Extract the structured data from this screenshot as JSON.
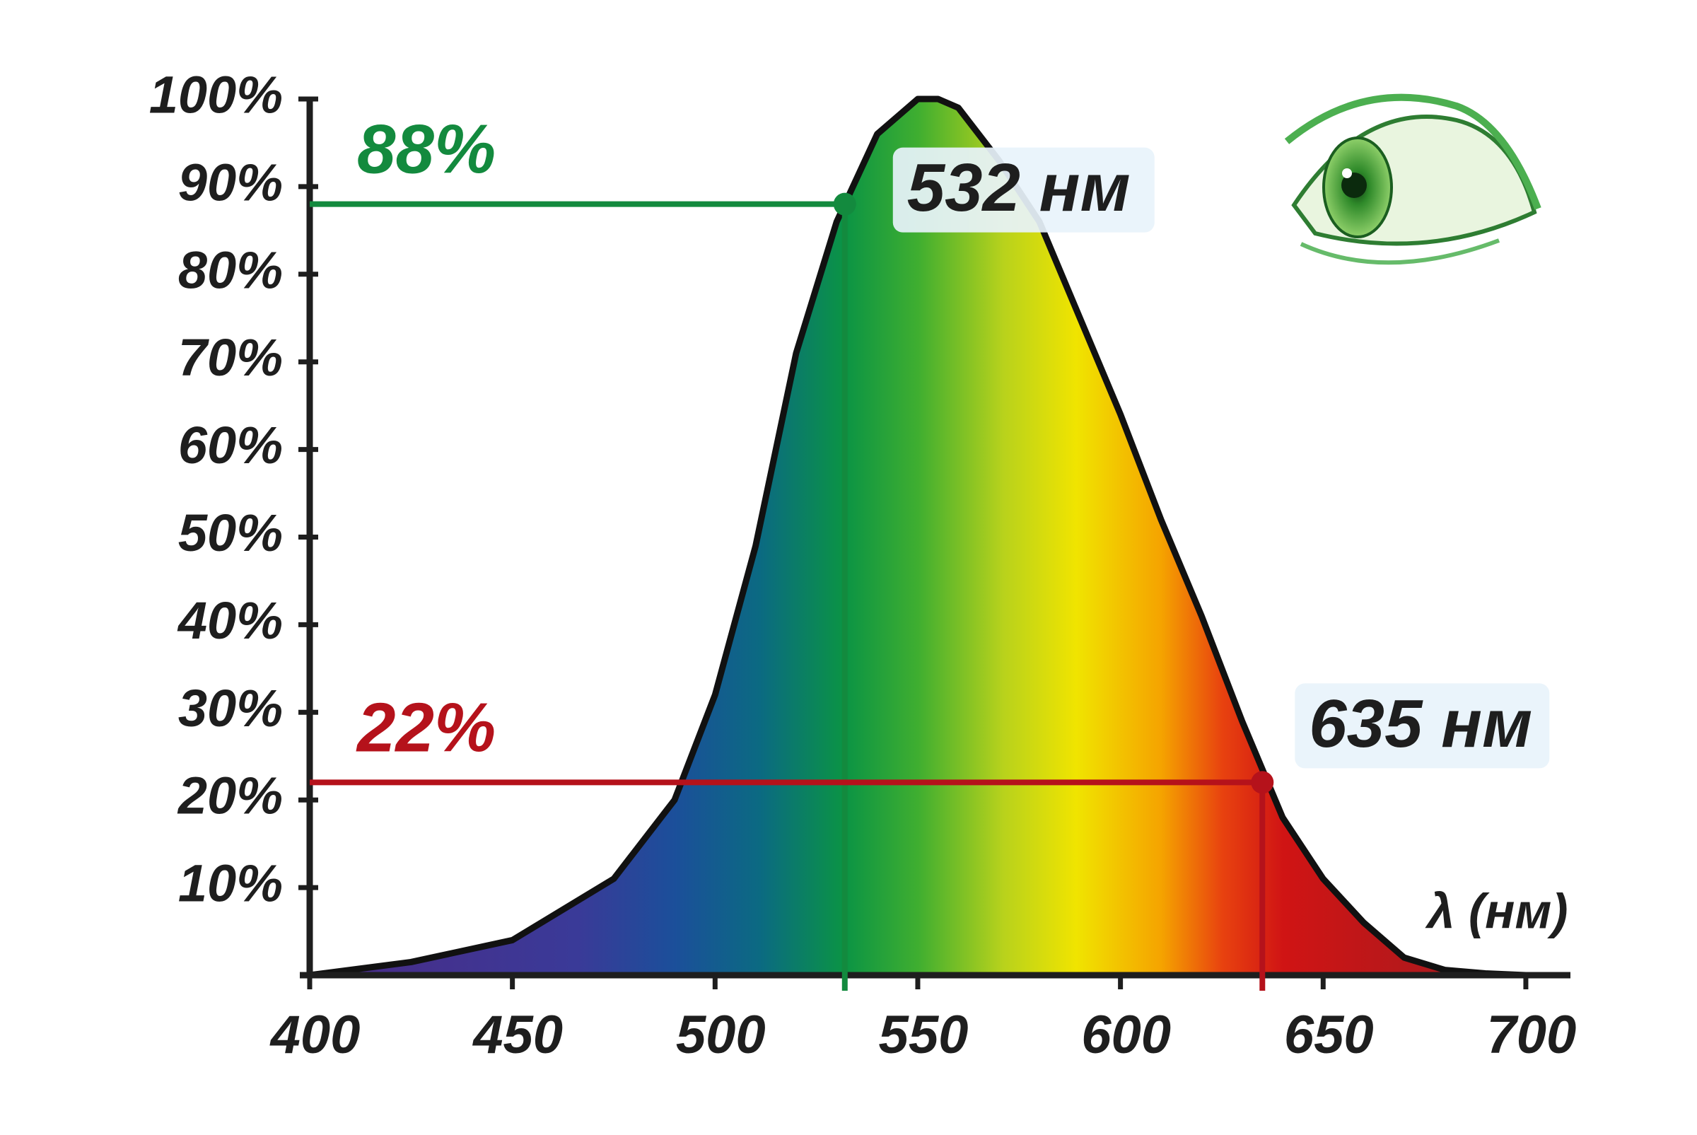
{
  "chart_data": {
    "type": "area",
    "x_label": "λ (нм)",
    "x": [
      400,
      425,
      450,
      475,
      490,
      500,
      510,
      520,
      530,
      540,
      550,
      555,
      560,
      570,
      580,
      590,
      600,
      610,
      620,
      630,
      640,
      650,
      660,
      670,
      680,
      690,
      700
    ],
    "values": [
      0,
      1.5,
      4,
      11,
      20,
      32,
      49,
      71,
      86,
      96,
      100,
      100,
      99,
      93,
      86,
      75,
      64,
      52,
      41,
      29,
      18,
      11,
      6,
      2,
      0.6,
      0.2,
      0
    ],
    "color": "#111111",
    "xlim": [
      400,
      711
    ],
    "ylim": [
      0,
      100
    ],
    "xticks": [
      400,
      450,
      500,
      550,
      600,
      650,
      700
    ],
    "yticks": [
      {
        "value": 10,
        "label": "10%"
      },
      {
        "value": 20,
        "label": "20%"
      },
      {
        "value": 30,
        "label": "30%"
      },
      {
        "value": 40,
        "label": "40%"
      },
      {
        "value": 50,
        "label": "50%"
      },
      {
        "value": 60,
        "label": "60%"
      },
      {
        "value": 70,
        "label": "70%"
      },
      {
        "value": 80,
        "label": "80%"
      },
      {
        "value": 90,
        "label": "90%"
      },
      {
        "value": 100,
        "label": "100%"
      }
    ],
    "grid": false,
    "annotations": [
      {
        "x": 532,
        "y": 88,
        "label": "88%",
        "x_label": "532 нм",
        "color": "#138a3e"
      },
      {
        "x": 635,
        "y": 22,
        "label": "22%",
        "x_label": "635 нм",
        "color": "#b5121b"
      }
    ]
  }
}
